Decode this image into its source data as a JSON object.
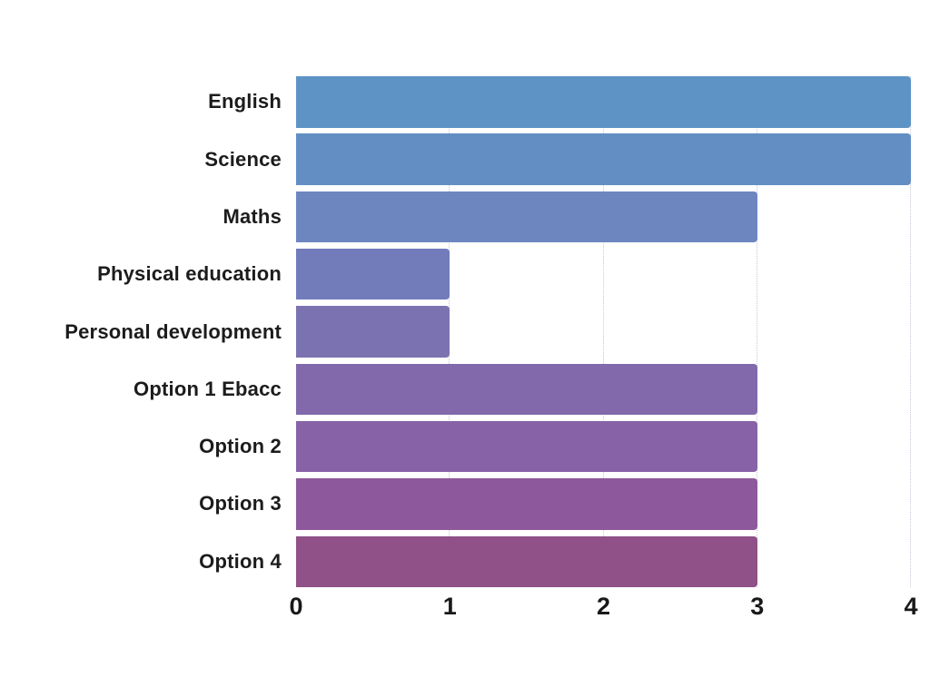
{
  "chart_data": {
    "type": "bar",
    "orientation": "horizontal",
    "title": "",
    "xlabel": "",
    "ylabel": "",
    "categories": [
      "English",
      "Science",
      "Maths",
      "Physical education",
      "Personal development",
      "Option 1 Ebacc",
      "Option 2",
      "Option 3",
      "Option 4"
    ],
    "values": [
      4,
      4,
      3,
      1,
      1,
      3,
      3,
      3,
      3
    ],
    "bar_colors": [
      "#5e94c5",
      "#628ec4",
      "#6d86c0",
      "#727cba",
      "#7b73b1",
      "#8169ac",
      "#8762a6",
      "#8d599c",
      "#8f5187"
    ],
    "xlim": [
      0,
      4
    ],
    "x_ticks": [
      "0",
      "1",
      "2",
      "3",
      "4"
    ],
    "gridlines": {
      "show": true,
      "style": "dotted",
      "color": "#c7c7d8",
      "at": [
        1,
        2,
        3,
        4
      ]
    },
    "legend": {
      "show": false
    },
    "background": "#ffffff"
  }
}
